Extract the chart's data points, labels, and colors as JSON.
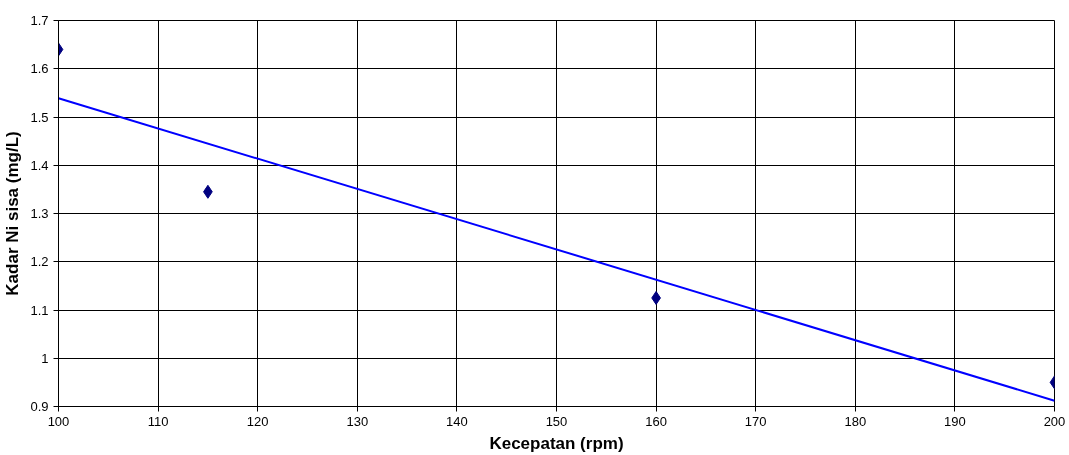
{
  "chart_data": {
    "type": "scatter",
    "xlabel": "Kecepatan (rpm)",
    "ylabel": "Kadar Ni sisa (mg/L)",
    "x": [
      100,
      115,
      160,
      200
    ],
    "series": [
      {
        "color": "#000080",
        "values": [
          1.64,
          1.345,
          1.125,
          0.95
        ],
        "marker": "diamond"
      },
      {
        "type": "line",
        "color": "#0000ff",
        "x": [
          100,
          200
        ],
        "values": [
          1.539,
          0.912
        ],
        "line_style": "solid"
      }
    ],
    "xlim": [
      100,
      200
    ],
    "xticks": [
      100,
      110,
      120,
      130,
      140,
      150,
      160,
      170,
      180,
      190,
      200
    ],
    "ylim": [
      0.9,
      1.7
    ],
    "yticks": [
      0.9,
      1,
      1.1,
      1.2,
      1.3,
      1.4,
      1.5,
      1.6,
      1.7
    ],
    "grid": true
  }
}
